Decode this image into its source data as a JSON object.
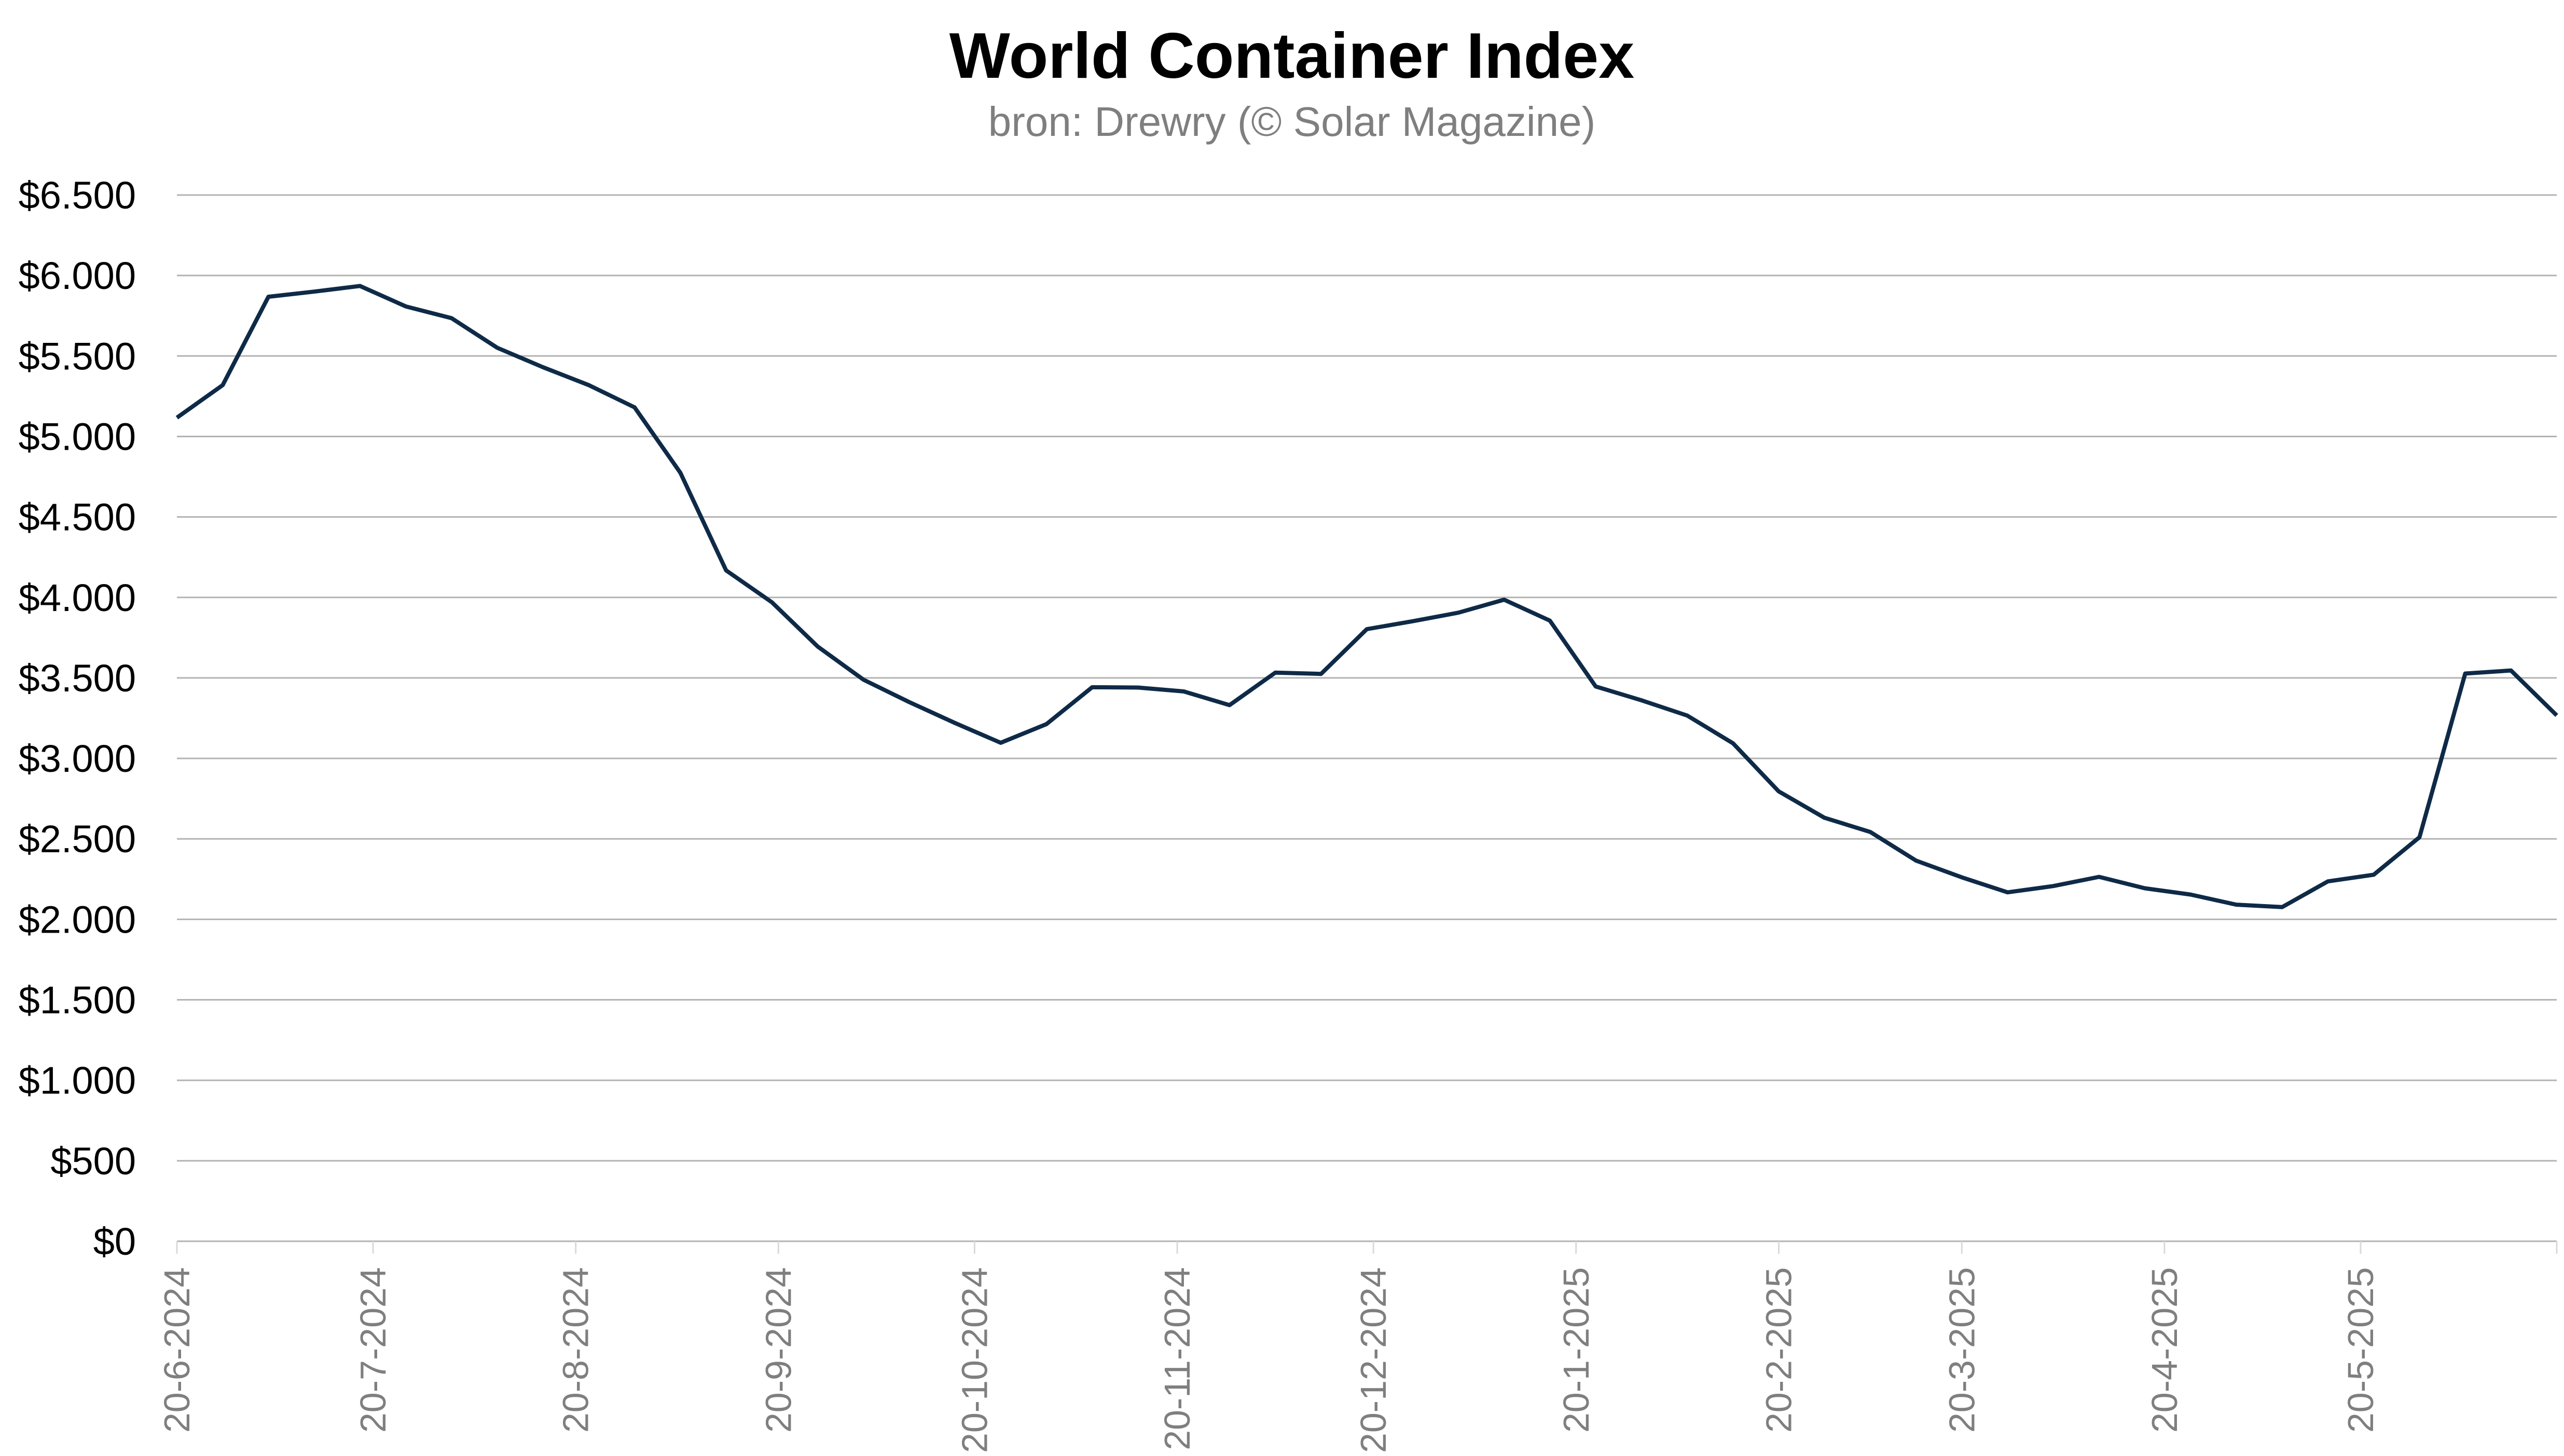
{
  "chart_data": {
    "type": "line",
    "title": "World Container Index",
    "subtitle": "bron: Drewry (© Solar Magazine)",
    "xlabel": "",
    "ylabel": "",
    "ylim": [
      0,
      6500
    ],
    "yticks": [
      0,
      500,
      1000,
      1500,
      2000,
      2500,
      3000,
      3500,
      4000,
      4500,
      5000,
      5500,
      6000,
      6500
    ],
    "ytick_labels": [
      "$0",
      "$500",
      "$1.000",
      "$1.500",
      "$2.000",
      "$2.500",
      "$3.000",
      "$3.500",
      "$4.000",
      "$4.500",
      "$5.000",
      "$5.500",
      "$6.000",
      "$6.500"
    ],
    "xtick_labels": [
      "20-6-2024",
      "20-7-2024",
      "20-8-2024",
      "20-9-2024",
      "20-10-2024",
      "20-11-2024",
      "20-12-2024",
      "20-1-2025",
      "20-2-2025",
      "20-3-2025",
      "20-4-2025",
      "20-5-2025"
    ],
    "x_start": "20-6-2024",
    "x_step_days": 7,
    "grid": true,
    "series": [
      {
        "name": "World Container Index",
        "color": "#0e2a47",
        "values": [
          5117,
          5319,
          5868,
          5900,
          5935,
          5808,
          5735,
          5551,
          5430,
          5319,
          5181,
          4775,
          4168,
          3970,
          3695,
          3489,
          3350,
          3220,
          3097,
          3213,
          3442,
          3440,
          3416,
          3331,
          3533,
          3525,
          3803,
          3852,
          3905,
          3986,
          3856,
          3447,
          3361,
          3266,
          3094,
          2795,
          2631,
          2543,
          2365,
          2261,
          2168,
          2207,
          2264,
          2193,
          2154,
          2091,
          2076,
          2236,
          2277,
          2510,
          3527,
          3546,
          3267
        ]
      }
    ]
  }
}
